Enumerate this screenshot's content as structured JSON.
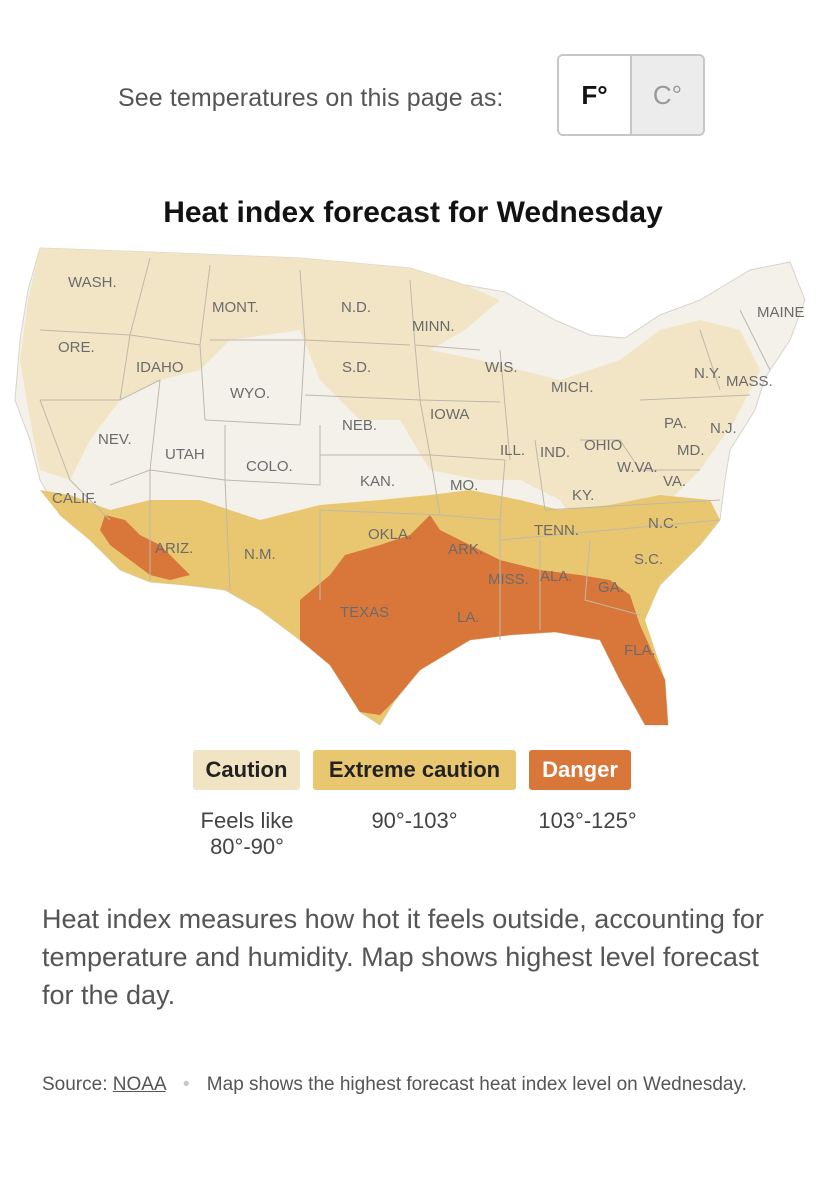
{
  "units": {
    "prompt": "See temperatures on this page as:",
    "fahrenheit": "F°",
    "celsius": "C°"
  },
  "map": {
    "title": "Heat index forecast for Wednesday",
    "state_labels": {
      "wash": "WASH.",
      "ore": "ORE.",
      "calif": "CALIF.",
      "idaho": "IDAHO",
      "nev": "NEV.",
      "mont": "MONT.",
      "wyo": "WYO.",
      "utah": "UTAH",
      "ariz": "ARIZ.",
      "colo": "COLO.",
      "nm": "N.M.",
      "nd": "N.D.",
      "sd": "S.D.",
      "neb": "NEB.",
      "kan": "KAN.",
      "okla": "OKLA.",
      "texas": "TEXAS",
      "minn": "MINN.",
      "iowa": "IOWA",
      "mo": "MO.",
      "ark": "ARK.",
      "la": "LA.",
      "wis": "WIS.",
      "ill": "ILL.",
      "mich": "MICH.",
      "ind": "IND.",
      "ohio": "OHIO",
      "ky": "KY.",
      "tenn": "TENN.",
      "miss": "MISS.",
      "ala": "ALA.",
      "ga": "GA.",
      "fla": "FLA.",
      "sc": "S.C.",
      "nc": "N.C.",
      "va": "VA.",
      "wva": "W.VA.",
      "pa": "PA.",
      "ny": "N.Y.",
      "nj": "N.J.",
      "md": "MD.",
      "mass": "MASS.",
      "maine": "MAINE"
    },
    "colors": {
      "none": "#f3f1ea",
      "caution": "#f1e4c3",
      "extreme": "#e9c771",
      "danger": "#d9773a"
    }
  },
  "legend": [
    {
      "label": "Caution",
      "range": "Feels like 80°-90°"
    },
    {
      "label": "Extreme caution",
      "range": "90°-103°"
    },
    {
      "label": "Danger",
      "range": "103°-125°"
    }
  ],
  "description": "Heat index measures how hot it feels outside, accounting for temperature and humidity. Map shows highest level forecast for the day.",
  "source": {
    "prefix": "Source:",
    "link_text": "NOAA",
    "note": "Map shows the highest forecast heat index level on Wednesday."
  }
}
